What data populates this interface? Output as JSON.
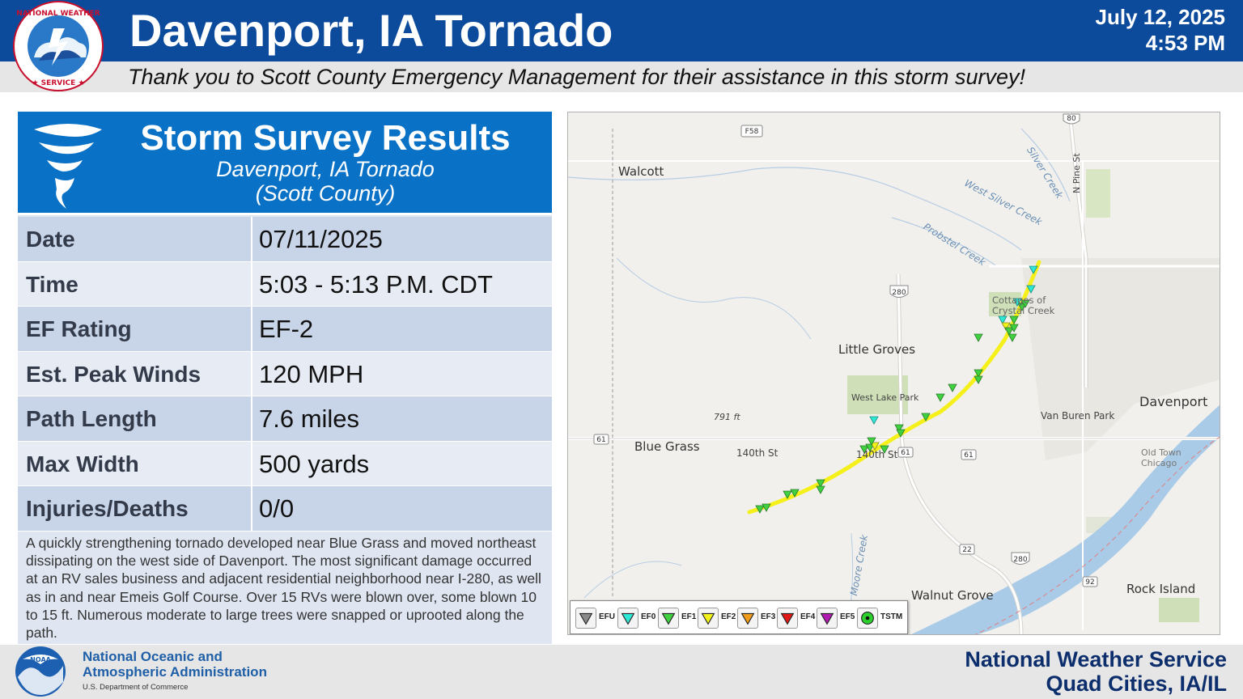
{
  "header": {
    "title": "Davenport, IA Tornado",
    "date": "July 12, 2025",
    "time": "4:53 PM",
    "thanks": "Thank you to Scott County Emergency Management for their assistance in this storm survey!",
    "logo_letters": "NATIONAL WEATHER SERVICE"
  },
  "survey": {
    "title": "Storm Survey Results",
    "subtitle": "Davenport, IA Tornado",
    "county": "(Scott County)",
    "rows": [
      {
        "label": "Date",
        "value": "07/11/2025"
      },
      {
        "label": "Time",
        "value": "5:03 - 5:13 P.M. CDT"
      },
      {
        "label": "EF Rating",
        "value": "EF-2"
      },
      {
        "label": "Est. Peak Winds",
        "value": "120 MPH"
      },
      {
        "label": "Path Length",
        "value": "7.6 miles"
      },
      {
        "label": "Max Width",
        "value": "500 yards"
      },
      {
        "label": "Injuries/Deaths",
        "value": "0/0"
      }
    ],
    "description": "A quickly strengthening tornado developed near Blue Grass and moved northeast dissipating on the west side of Davenport. The most significant damage occurred at an RV sales business and adjacent residential neighborhood near I-280, as well as in and near Emeis Golf Course. Over 15 RVs were blown over, some blown 10 to 15 ft. Numerous moderate to large trees were snapped or uprooted along the path."
  },
  "map": {
    "places": {
      "walcott": "Walcott",
      "little_groves": "Little Groves",
      "west_lake_park": "West Lake Park",
      "blue_grass": "Blue Grass",
      "davenport": "Davenport",
      "van_buren_park": "Van Buren Park",
      "old_town_chicago": "Old Town Chicago",
      "cottages": "Cottages of Crystal Creek",
      "walnut_grove": "Walnut Grove",
      "rock_island": "Rock Island",
      "street_140th": "140th St",
      "street_140th_b": "140th St",
      "n_pine_st": "N Pine St",
      "elevation": "791 ft"
    },
    "waterways": {
      "silver_creek": "Silver Creek",
      "west_silver_creek": "West Silver Creek",
      "probstel_creek": "Probstel Creek",
      "moore_creek": "Moore Creek"
    },
    "route_shields": {
      "f58": "F58",
      "i80": "80",
      "i280_n": "280",
      "us61_w": "61",
      "us61_c": "61",
      "us61_e": "61",
      "r22": "22",
      "i280_s": "280",
      "r92": "92"
    },
    "legend": [
      {
        "label": "EFU",
        "color": "#8a8a8a",
        "icon": "triangle-down"
      },
      {
        "label": "EF0",
        "color": "#2ee8d6",
        "icon": "triangle-down"
      },
      {
        "label": "EF1",
        "color": "#3fd13f",
        "icon": "triangle-down"
      },
      {
        "label": "EF2",
        "color": "#f2f21a",
        "icon": "triangle-down"
      },
      {
        "label": "EF3",
        "color": "#f29a1a",
        "icon": "triangle-down"
      },
      {
        "label": "EF4",
        "color": "#e01818",
        "icon": "triangle-down"
      },
      {
        "label": "EF5",
        "color": "#b01ab0",
        "icon": "triangle-down"
      },
      {
        "label": "TSTM",
        "color": "#2ccf2c",
        "icon": "circle-dot"
      }
    ],
    "colors": {
      "track": "#f5f01a",
      "river": "#a9cbe8",
      "land": "#f1f0ec",
      "park": "#cfe0b8",
      "road": "#ffffff"
    }
  },
  "footer": {
    "agency_line1": "National Oceanic and",
    "agency_line2": "Atmospheric Administration",
    "department": "U.S. Department of Commerce",
    "office_line1": "National Weather Service",
    "office_line2": "Quad Cities, IA/IL",
    "noaa_logo_text": "NOAA"
  }
}
